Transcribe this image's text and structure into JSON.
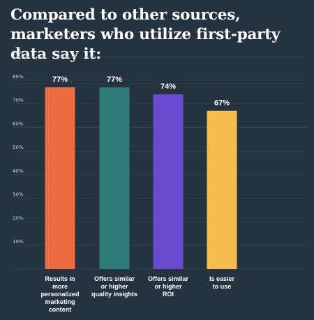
{
  "title": "Compared to other sources, marketers who utilize first-party data say it:",
  "chart_data": {
    "type": "bar",
    "categories": [
      [
        "Results in",
        "more",
        "personalized",
        "marketing",
        "content"
      ],
      [
        "Offers similar",
        "or higher",
        "quality insights"
      ],
      [
        "Offers similar",
        "or higher",
        "ROI"
      ],
      [
        "Is easier",
        "to use"
      ]
    ],
    "values": [
      77,
      77,
      74,
      67
    ],
    "data_labels": [
      "77%",
      "77%",
      "74%",
      "67%"
    ],
    "bar_colors": [
      "#ec6b3f",
      "#2e7b7b",
      "#6a4bd0",
      "#f4bd4f"
    ],
    "yticks": [
      "10%",
      "20%",
      "30%",
      "40%",
      "50%",
      "60%",
      "70%",
      "80%",
      "90%"
    ],
    "ylim": [
      0,
      90
    ],
    "grid": true
  }
}
